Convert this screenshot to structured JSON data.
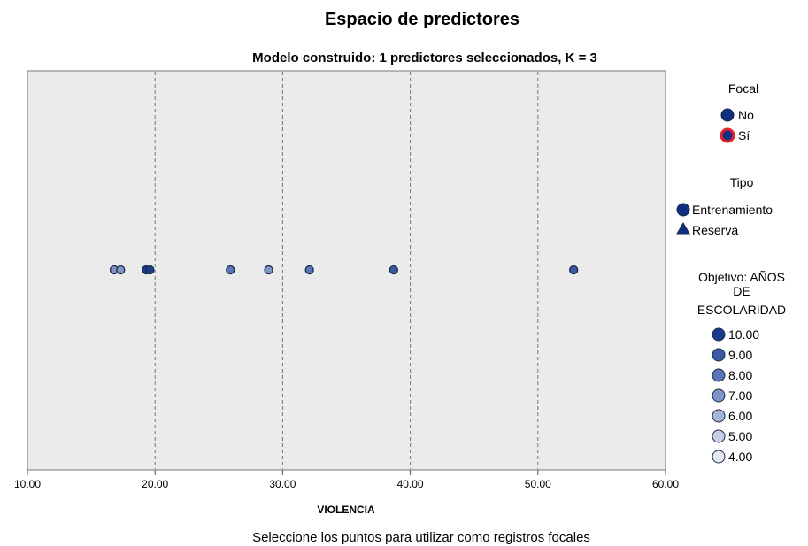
{
  "chart_data": {
    "type": "scatter",
    "title": "Espacio de predictores",
    "subtitle": "Modelo construido: 1 predictores seleccionados, K = 3",
    "xlabel": "VIOLENCIA",
    "xlim": [
      10,
      60
    ],
    "xticks": [
      "10.00",
      "20.00",
      "30.00",
      "40.00",
      "50.00",
      "60.00"
    ],
    "grid": "vertical dashed",
    "points": [
      {
        "x": 16.8,
        "value": 7
      },
      {
        "x": 17.3,
        "value": 7
      },
      {
        "x": 19.3,
        "value": 10
      },
      {
        "x": 19.6,
        "value": 10
      },
      {
        "x": 25.9,
        "value": 8
      },
      {
        "x": 28.9,
        "value": 7
      },
      {
        "x": 32.1,
        "value": 8
      },
      {
        "x": 38.7,
        "value": 9
      },
      {
        "x": 52.8,
        "value": 9
      }
    ],
    "legend_placement": "right",
    "legend": {
      "focal": {
        "title": "Focal",
        "items": [
          "No",
          "Sí"
        ]
      },
      "tipo": {
        "title": "Tipo",
        "items": [
          "Entrenamiento",
          "Reserva"
        ]
      },
      "objetivo": {
        "title_lines": [
          "Objetivo: AÑOS",
          "DE",
          "ESCOLARIDAD"
        ],
        "items": [
          "10.00",
          "9.00",
          "8.00",
          "7.00",
          "6.00",
          "5.00",
          "4.00"
        ]
      }
    }
  },
  "footer": "Seleccione los puntos para utilizar como registros focales",
  "colors": {
    "plot_bg": "#ebebeb",
    "point_stroke": "#1a2a44",
    "focal_no": "#0f2f80",
    "focal_si_ring": "#e8202a",
    "scale": [
      "#1a3b8c",
      "#3a5aa6",
      "#5a76b8",
      "#7f95c8",
      "#a4b3d8",
      "#c5cfe6",
      "#e3e8f3"
    ]
  }
}
